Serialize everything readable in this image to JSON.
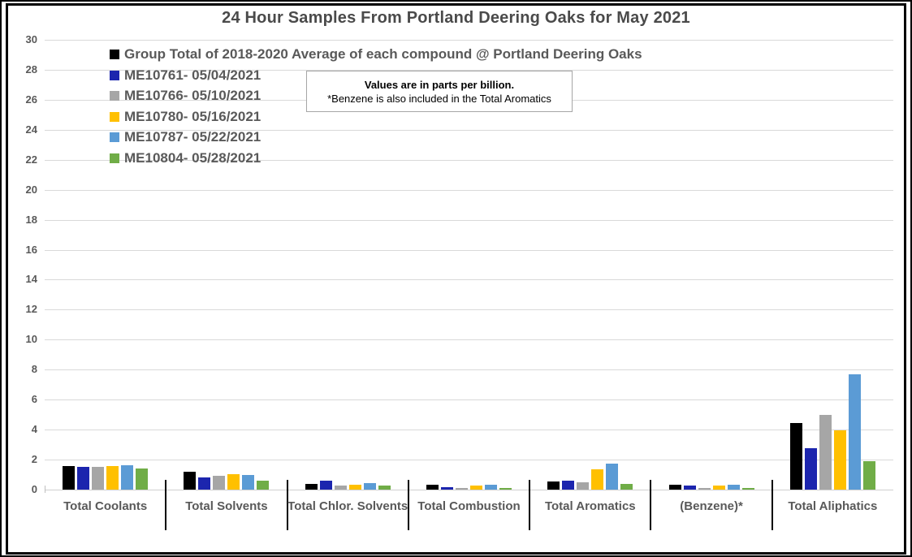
{
  "title": "24 Hour Samples From Portland Deering Oaks for May 2021",
  "note": {
    "line1": "Values are in parts per billion.",
    "line2": "*Benzene is also included in the Total Aromatics"
  },
  "colors": {
    "text_dark_gray": "#595959",
    "gridline": "#d9d9d9",
    "frame_border": "#000000"
  },
  "chart_data": {
    "type": "bar",
    "title": "24 Hour Samples From Portland Deering Oaks for May 2021",
    "unit": "parts per billion",
    "categories": [
      "Total Coolants",
      "Total Solvents",
      "Total Chlor. Solvents",
      "Total Combustion",
      "Total Aromatics",
      "(Benzene)*",
      "Total Aliphatics"
    ],
    "series": [
      {
        "name": "Group Total of 2018-2020 Average of each compound @ Portland Deering Oaks",
        "color": "#000000",
        "values": [
          1.55,
          1.2,
          0.4,
          0.3,
          0.55,
          0.35,
          4.45
        ]
      },
      {
        "name": "ME10761- 05/04/2021",
        "color": "#1c25ae",
        "values": [
          1.5,
          0.8,
          0.6,
          0.15,
          0.6,
          0.25,
          2.75
        ]
      },
      {
        "name": "ME10766- 05/10/2021",
        "color": "#a6a6a6",
        "values": [
          1.5,
          0.9,
          0.25,
          0.1,
          0.5,
          0.1,
          5.0
        ]
      },
      {
        "name": "ME10780- 05/16/2021",
        "color": "#ffc000",
        "values": [
          1.55,
          1.05,
          0.35,
          0.25,
          1.35,
          0.25,
          3.95
        ]
      },
      {
        "name": "ME10787- 05/22/2021",
        "color": "#5b9bd5",
        "values": [
          1.65,
          1.0,
          0.45,
          0.3,
          1.75,
          0.3,
          7.7
        ]
      },
      {
        "name": "ME10804- 05/28/2021",
        "color": "#70ad47",
        "values": [
          1.4,
          0.6,
          0.25,
          0.1,
          0.4,
          0.1,
          1.9
        ]
      }
    ],
    "xlabel": "",
    "ylabel": "",
    "ylim": [
      0,
      30
    ],
    "ytick_step": 2,
    "grid": true,
    "legend_position": "top-left-inside"
  }
}
